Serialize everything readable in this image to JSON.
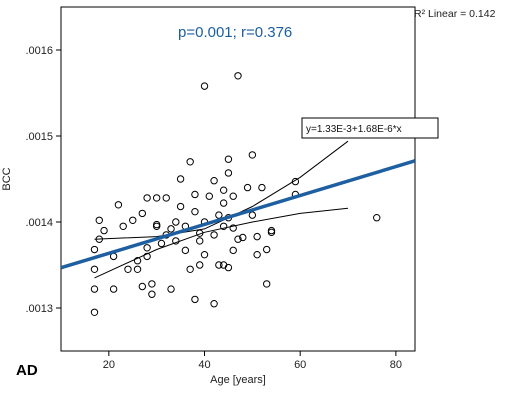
{
  "chart_data": {
    "type": "scatter",
    "panel_label": "AD",
    "annotation": "p=0.001; r=0.376",
    "r2_label": "R² Linear = 0.142",
    "equation": "y=1.33E-3+1.68E-6*x",
    "xlabel": "Age [years]",
    "ylabel": "BCC",
    "xlim": [
      10,
      84
    ],
    "ylim": [
      0.00125,
      0.00165
    ],
    "x_ticks": [
      20,
      40,
      60,
      80
    ],
    "x_tick_labels": [
      "20",
      "40",
      "60",
      "80"
    ],
    "y_ticks": [
      0.0013,
      0.0014,
      0.0015,
      0.0016
    ],
    "y_tick_labels": [
      ".0013",
      ".0014",
      ".0015",
      ".0016"
    ],
    "grid": false,
    "colors": {
      "fit_line": "#1d5fa0",
      "ci_lines": "#000000",
      "points": "#000000",
      "annotation": "#1d5fa0"
    },
    "fit": {
      "intercept": 0.00133,
      "slope": 1.68e-06,
      "x_range": [
        10,
        84
      ]
    },
    "ci_upper": [
      [
        17,
        0.00138
      ],
      [
        30,
        0.001383
      ],
      [
        40,
        0.001392
      ],
      [
        50,
        0.001418
      ],
      [
        60,
        0.001452
      ],
      [
        70,
        0.001494
      ]
    ],
    "ci_lower": [
      [
        17,
        0.001335
      ],
      [
        30,
        0.001368
      ],
      [
        40,
        0.001388
      ],
      [
        50,
        0.0014
      ],
      [
        60,
        0.00141
      ],
      [
        70,
        0.001416
      ]
    ],
    "points": [
      [
        17,
        0.001295
      ],
      [
        17,
        0.001322
      ],
      [
        17,
        0.001345
      ],
      [
        17,
        0.001368
      ],
      [
        18,
        0.001402
      ],
      [
        18,
        0.00138
      ],
      [
        19,
        0.00139
      ],
      [
        21,
        0.001322
      ],
      [
        21,
        0.00136
      ],
      [
        22,
        0.00142
      ],
      [
        23,
        0.001395
      ],
      [
        24,
        0.001345
      ],
      [
        25,
        0.001402
      ],
      [
        26,
        0.001345
      ],
      [
        26,
        0.001355
      ],
      [
        27,
        0.001325
      ],
      [
        27,
        0.00141
      ],
      [
        28,
        0.00137
      ],
      [
        28,
        0.00136
      ],
      [
        28,
        0.001428
      ],
      [
        29,
        0.001328
      ],
      [
        29,
        0.001316
      ],
      [
        30,
        0.001395
      ],
      [
        30,
        0.001397
      ],
      [
        30,
        0.001428
      ],
      [
        31,
        0.001375
      ],
      [
        32,
        0.001385
      ],
      [
        32,
        0.001428
      ],
      [
        33,
        0.001322
      ],
      [
        33,
        0.001392
      ],
      [
        34,
        0.001378
      ],
      [
        34,
        0.0014
      ],
      [
        35,
        0.001418
      ],
      [
        35,
        0.00145
      ],
      [
        36,
        0.001395
      ],
      [
        36,
        0.001367
      ],
      [
        37,
        0.001345
      ],
      [
        37,
        0.00147
      ],
      [
        38,
        0.00131
      ],
      [
        38,
        0.001412
      ],
      [
        38,
        0.001432
      ],
      [
        39,
        0.001387
      ],
      [
        39,
        0.001378
      ],
      [
        39,
        0.00135
      ],
      [
        40,
        0.001558
      ],
      [
        40,
        0.0014
      ],
      [
        40,
        0.001362
      ],
      [
        41,
        0.00143
      ],
      [
        42,
        0.001305
      ],
      [
        42,
        0.001385
      ],
      [
        42,
        0.001448
      ],
      [
        43,
        0.001408
      ],
      [
        43,
        0.00135
      ],
      [
        44,
        0.00135
      ],
      [
        44,
        0.001395
      ],
      [
        44,
        0.001422
      ],
      [
        44,
        0.001437
      ],
      [
        45,
        0.001473
      ],
      [
        45,
        0.001457
      ],
      [
        45,
        0.001405
      ],
      [
        45,
        0.001347
      ],
      [
        46,
        0.00143
      ],
      [
        46,
        0.001393
      ],
      [
        46,
        0.001367
      ],
      [
        47,
        0.00157
      ],
      [
        47,
        0.00138
      ],
      [
        48,
        0.001382
      ],
      [
        49,
        0.00144
      ],
      [
        50,
        0.001478
      ],
      [
        50,
        0.001408
      ],
      [
        51,
        0.001362
      ],
      [
        51,
        0.001383
      ],
      [
        52,
        0.00144
      ],
      [
        53,
        0.001328
      ],
      [
        53,
        0.001368
      ],
      [
        54,
        0.00139
      ],
      [
        54,
        0.001388
      ],
      [
        59,
        0.001447
      ],
      [
        59,
        0.001432
      ],
      [
        62,
        0.00151
      ],
      [
        76,
        0.001405
      ]
    ]
  }
}
